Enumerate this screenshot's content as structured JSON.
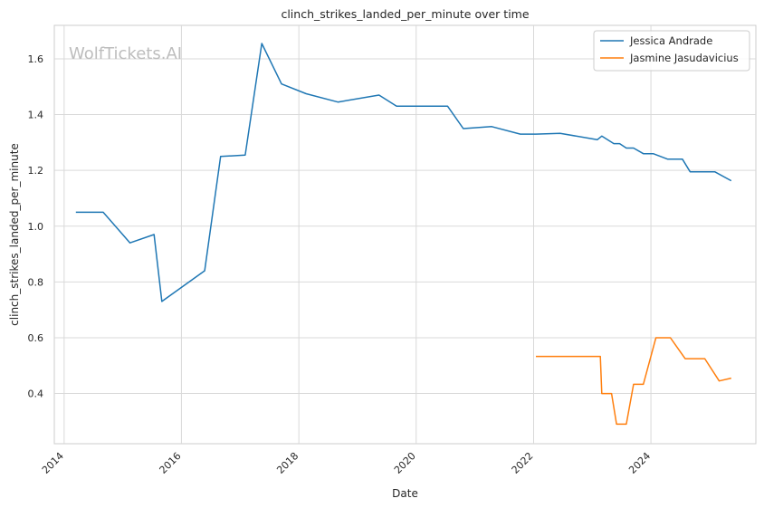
{
  "watermark": "WolfTickets.AI",
  "chart_data": {
    "type": "line",
    "title": "clinch_strikes_landed_per_minute over time",
    "xlabel": "Date",
    "ylabel": "clinch_strikes_landed_per_minute",
    "xlim": [
      "2013-11-01",
      "2025-10-15"
    ],
    "ylim": [
      0.22,
      1.72
    ],
    "x_ticks": [
      "2014",
      "2016",
      "2018",
      "2020",
      "2022",
      "2024"
    ],
    "y_ticks": [
      "0.4",
      "0.6",
      "0.8",
      "1.0",
      "1.2",
      "1.4",
      "1.6"
    ],
    "grid": true,
    "legend_position": "top-right",
    "series": [
      {
        "name": "Jessica Andrade",
        "color": "#1f77b4",
        "points": [
          [
            "2014-03-15",
            1.05
          ],
          [
            "2014-09-01",
            1.05
          ],
          [
            "2015-02-15",
            0.94
          ],
          [
            "2015-07-15",
            0.97
          ],
          [
            "2015-09-01",
            0.73
          ],
          [
            "2016-05-25",
            0.84
          ],
          [
            "2016-09-01",
            1.25
          ],
          [
            "2017-02-01",
            1.255
          ],
          [
            "2017-05-15",
            1.655
          ],
          [
            "2017-09-15",
            1.51
          ],
          [
            "2018-02-15",
            1.475
          ],
          [
            "2018-09-01",
            1.445
          ],
          [
            "2019-05-15",
            1.47
          ],
          [
            "2019-09-01",
            1.43
          ],
          [
            "2020-07-15",
            1.43
          ],
          [
            "2020-10-20",
            1.35
          ],
          [
            "2021-04-15",
            1.357
          ],
          [
            "2021-10-10",
            1.33
          ],
          [
            "2022-01-15",
            1.33
          ],
          [
            "2022-06-15",
            1.333
          ],
          [
            "2023-02-01",
            1.31
          ],
          [
            "2023-03-01",
            1.323
          ],
          [
            "2023-05-15",
            1.296
          ],
          [
            "2023-06-20",
            1.296
          ],
          [
            "2023-08-01",
            1.28
          ],
          [
            "2023-09-15",
            1.28
          ],
          [
            "2023-11-15",
            1.26
          ],
          [
            "2024-01-15",
            1.26
          ],
          [
            "2024-04-15",
            1.24
          ],
          [
            "2024-07-15",
            1.24
          ],
          [
            "2024-09-01",
            1.195
          ],
          [
            "2025-02-01",
            1.195
          ],
          [
            "2025-05-15",
            1.163
          ]
        ]
      },
      {
        "name": "Jasmine Jasudavicius",
        "color": "#ff7f0e",
        "points": [
          [
            "2022-01-15",
            0.533
          ],
          [
            "2023-02-20",
            0.533
          ],
          [
            "2023-03-01",
            0.4
          ],
          [
            "2023-05-01",
            0.4
          ],
          [
            "2023-06-01",
            0.29
          ],
          [
            "2023-08-01",
            0.29
          ],
          [
            "2023-09-15",
            0.433
          ],
          [
            "2023-11-15",
            0.433
          ],
          [
            "2024-02-01",
            0.6
          ],
          [
            "2024-05-01",
            0.6
          ],
          [
            "2024-08-01",
            0.525
          ],
          [
            "2024-12-01",
            0.525
          ],
          [
            "2025-03-01",
            0.445
          ],
          [
            "2025-05-15",
            0.455
          ]
        ]
      }
    ]
  }
}
